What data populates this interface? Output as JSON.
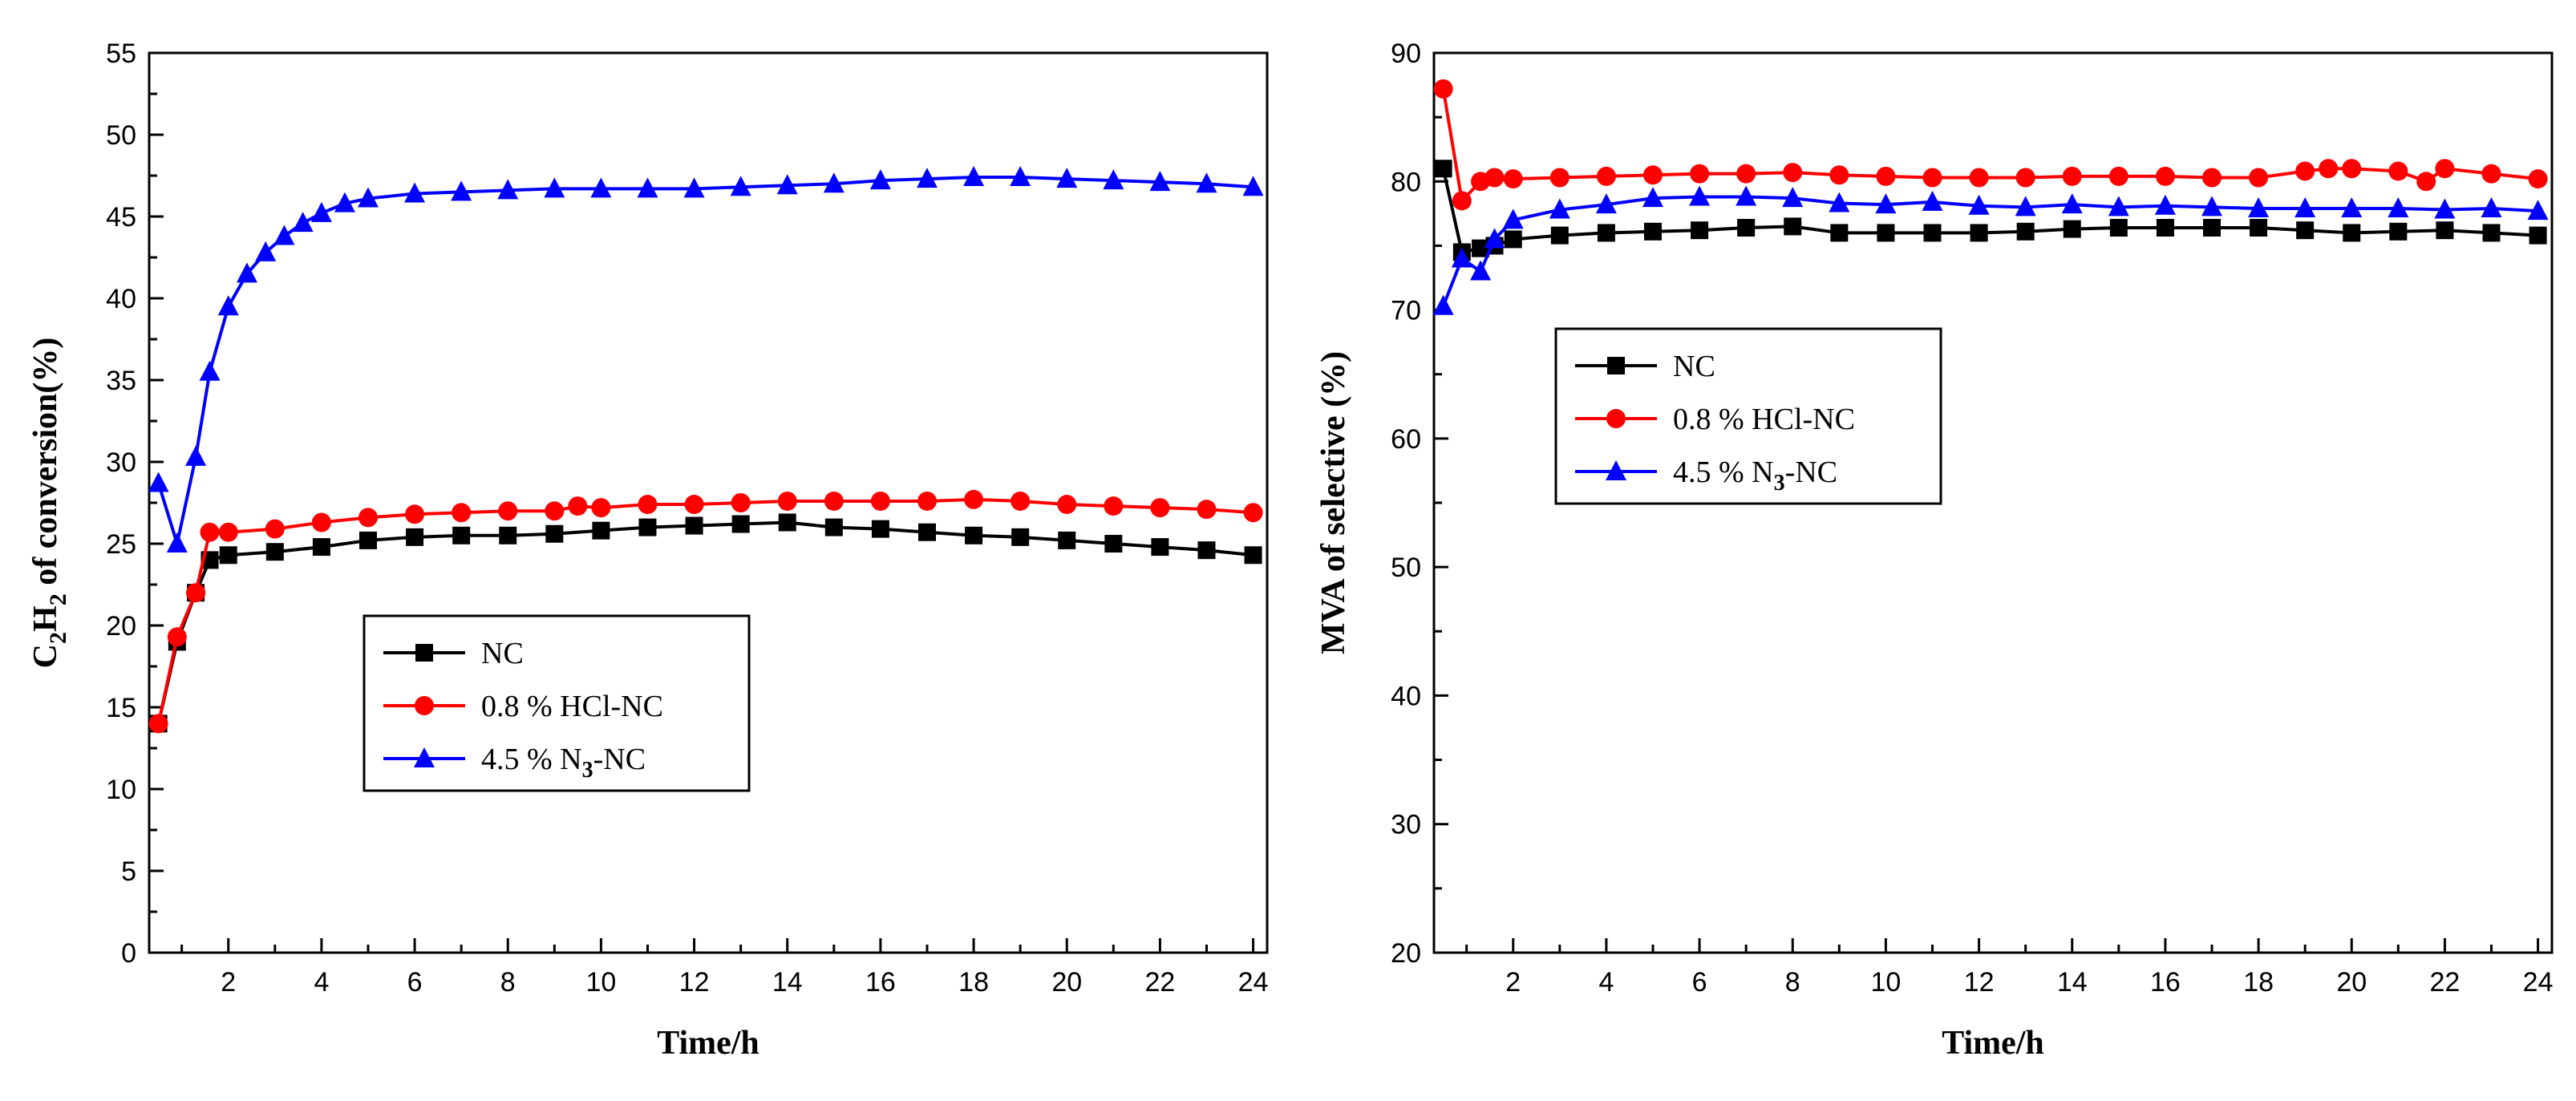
{
  "chart_data": [
    {
      "type": "line",
      "title": "",
      "xlabel": "Time/h",
      "ylabel": "C2H2 of conversion(%)",
      "ylabel_parts": {
        "c": "C",
        "sub1": "2",
        "h": "H",
        "sub2": "2",
        "rest": " of conversion(%)"
      },
      "xlim": [
        0.3,
        24.3
      ],
      "ylim": [
        0,
        55
      ],
      "xticks": [
        2,
        4,
        6,
        8,
        10,
        12,
        14,
        16,
        18,
        20,
        22,
        24
      ],
      "xtick_labels": [
        "2",
        "4",
        "6",
        "8",
        "10",
        "12",
        "14",
        "16",
        "18",
        "20",
        "22",
        "24"
      ],
      "yticks": [
        0,
        5,
        10,
        15,
        20,
        25,
        30,
        35,
        40,
        45,
        50,
        55
      ],
      "ytick_labels": [
        "0",
        "5",
        "10",
        "15",
        "20",
        "25",
        "30",
        "35",
        "40",
        "45",
        "50",
        "55"
      ],
      "legend_position": "middle-left",
      "series": [
        {
          "name": "NC",
          "legend_parts": {
            "main": "NC",
            "sub": "",
            "rest": ""
          },
          "color": "#000000",
          "marker": "square",
          "x": [
            0.5,
            0.9,
            1.3,
            1.6,
            2.0,
            3.0,
            4.0,
            5.0,
            6.0,
            7.0,
            8.0,
            9.0,
            10.0,
            11.0,
            12.0,
            13.0,
            14.0,
            15.0,
            16.0,
            17.0,
            18.0,
            19.0,
            20.0,
            21.0,
            22.0,
            23.0,
            24.0
          ],
          "y": [
            14.0,
            19.0,
            22.0,
            24.0,
            24.3,
            24.5,
            24.8,
            25.2,
            25.4,
            25.5,
            25.5,
            25.6,
            25.8,
            26.0,
            26.1,
            26.2,
            26.3,
            26.0,
            25.9,
            25.7,
            25.5,
            25.4,
            25.2,
            25.0,
            24.8,
            24.6,
            24.3
          ]
        },
        {
          "name": "0.8 % HCl-NC",
          "legend_parts": {
            "main": "0.8 % HCl-NC",
            "sub": "",
            "rest": ""
          },
          "color": "#ff0000",
          "marker": "circle",
          "x": [
            0.5,
            0.9,
            1.3,
            1.6,
            2.0,
            3.0,
            4.0,
            5.0,
            6.0,
            7.0,
            8.0,
            9.0,
            9.5,
            10.0,
            11.0,
            12.0,
            13.0,
            14.0,
            15.0,
            16.0,
            17.0,
            18.0,
            19.0,
            20.0,
            21.0,
            22.0,
            23.0,
            24.0
          ],
          "y": [
            14.0,
            19.3,
            22.0,
            25.7,
            25.7,
            25.9,
            26.3,
            26.6,
            26.8,
            26.9,
            27.0,
            27.0,
            27.3,
            27.2,
            27.4,
            27.4,
            27.5,
            27.6,
            27.6,
            27.6,
            27.6,
            27.7,
            27.6,
            27.4,
            27.3,
            27.2,
            27.1,
            26.9
          ]
        },
        {
          "name": "4.5 % N3-NC",
          "legend_parts": {
            "main": "4.5 % N",
            "sub": "3",
            "rest": "-NC"
          },
          "color": "#0000ff",
          "marker": "triangle",
          "x": [
            0.5,
            0.9,
            1.3,
            1.6,
            2.0,
            2.4,
            2.8,
            3.2,
            3.6,
            4.0,
            4.5,
            5.0,
            6.0,
            7.0,
            8.0,
            9.0,
            10.0,
            11.0,
            12.0,
            13.0,
            14.0,
            15.0,
            16.0,
            17.0,
            18.0,
            19.0,
            20.0,
            21.0,
            22.0,
            23.0,
            24.0
          ],
          "y": [
            28.7,
            25.0,
            30.3,
            35.5,
            39.5,
            41.5,
            42.8,
            43.8,
            44.6,
            45.2,
            45.8,
            46.1,
            46.4,
            46.5,
            46.6,
            46.7,
            46.7,
            46.7,
            46.7,
            46.8,
            46.9,
            47.0,
            47.2,
            47.3,
            47.4,
            47.4,
            47.3,
            47.2,
            47.1,
            47.0,
            46.8
          ]
        }
      ]
    },
    {
      "type": "line",
      "title": "",
      "xlabel": "Time/h",
      "ylabel": "MVA of selective (%)",
      "xlim": [
        0.3,
        24.3
      ],
      "ylim": [
        20,
        90
      ],
      "xticks": [
        2,
        4,
        6,
        8,
        10,
        12,
        14,
        16,
        18,
        20,
        22,
        24
      ],
      "xtick_labels": [
        "2",
        "4",
        "6",
        "8",
        "10",
        "12",
        "14",
        "16",
        "18",
        "20",
        "22",
        "24"
      ],
      "yticks": [
        20,
        30,
        40,
        50,
        60,
        70,
        80,
        90
      ],
      "ytick_labels": [
        "20",
        "30",
        "40",
        "50",
        "60",
        "70",
        "80",
        "90"
      ],
      "legend_position": "upper-left",
      "series": [
        {
          "name": "NC",
          "legend_parts": {
            "main": "NC",
            "sub": "",
            "rest": ""
          },
          "color": "#000000",
          "marker": "square",
          "x": [
            0.5,
            0.9,
            1.3,
            1.6,
            2.0,
            3.0,
            4.0,
            5.0,
            6.0,
            7.0,
            8.0,
            9.0,
            10.0,
            11.0,
            12.0,
            13.0,
            14.0,
            15.0,
            16.0,
            17.0,
            18.0,
            19.0,
            20.0,
            21.0,
            22.0,
            23.0,
            24.0
          ],
          "y": [
            81.0,
            74.5,
            74.8,
            75.0,
            75.5,
            75.8,
            76.0,
            76.1,
            76.2,
            76.4,
            76.5,
            76.0,
            76.0,
            76.0,
            76.0,
            76.1,
            76.3,
            76.4,
            76.4,
            76.4,
            76.4,
            76.2,
            76.0,
            76.1,
            76.2,
            76.0,
            75.8
          ]
        },
        {
          "name": "0.8 % HCl-NC",
          "legend_parts": {
            "main": "0.8 % HCl-NC",
            "sub": "",
            "rest": ""
          },
          "color": "#ff0000",
          "marker": "circle",
          "x": [
            0.5,
            0.9,
            1.3,
            1.6,
            2.0,
            3.0,
            4.0,
            5.0,
            6.0,
            7.0,
            8.0,
            9.0,
            10.0,
            11.0,
            12.0,
            13.0,
            14.0,
            15.0,
            16.0,
            17.0,
            18.0,
            19.0,
            19.5,
            20.0,
            21.0,
            21.6,
            22.0,
            23.0,
            24.0
          ],
          "y": [
            87.2,
            78.5,
            80.0,
            80.3,
            80.2,
            80.3,
            80.4,
            80.5,
            80.6,
            80.6,
            80.7,
            80.5,
            80.4,
            80.3,
            80.3,
            80.3,
            80.4,
            80.4,
            80.4,
            80.3,
            80.3,
            80.8,
            81.0,
            81.0,
            80.8,
            80.0,
            81.0,
            80.6,
            80.2
          ]
        },
        {
          "name": "4.5 % N3-NC",
          "legend_parts": {
            "main": "4.5 % N",
            "sub": "3",
            "rest": "-NC"
          },
          "color": "#0000ff",
          "marker": "triangle",
          "x": [
            0.5,
            0.9,
            1.3,
            1.6,
            2.0,
            3.0,
            4.0,
            5.0,
            6.0,
            7.0,
            8.0,
            9.0,
            10.0,
            11.0,
            12.0,
            13.0,
            14.0,
            15.0,
            16.0,
            17.0,
            18.0,
            19.0,
            20.0,
            21.0,
            22.0,
            23.0,
            24.0
          ],
          "y": [
            70.3,
            74.0,
            73.0,
            75.5,
            77.0,
            77.8,
            78.2,
            78.7,
            78.8,
            78.8,
            78.7,
            78.3,
            78.2,
            78.4,
            78.1,
            78.0,
            78.2,
            78.0,
            78.1,
            78.0,
            77.9,
            77.9,
            77.9,
            77.9,
            77.8,
            77.9,
            77.7
          ]
        }
      ]
    }
  ]
}
